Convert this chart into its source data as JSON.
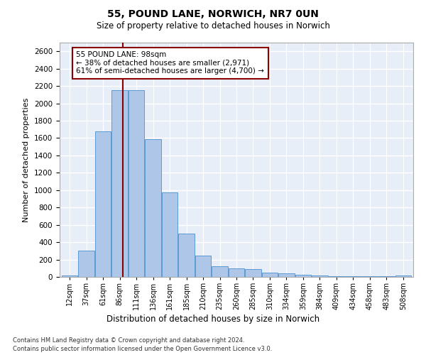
{
  "title1": "55, POUND LANE, NORWICH, NR7 0UN",
  "title2": "Size of property relative to detached houses in Norwich",
  "xlabel": "Distribution of detached houses by size in Norwich",
  "ylabel": "Number of detached properties",
  "annotation_line1": "55 POUND LANE: 98sqm",
  "annotation_line2": "← 38% of detached houses are smaller (2,971)",
  "annotation_line3": "61% of semi-detached houses are larger (4,700) →",
  "footnote1": "Contains HM Land Registry data © Crown copyright and database right 2024.",
  "footnote2": "Contains public sector information licensed under the Open Government Licence v3.0.",
  "bar_color": "#aec6e8",
  "bar_edge_color": "#5b9bd5",
  "vline_color": "#8b0000",
  "annotation_box_edge_color": "#8b0000",
  "background_color": "#e8eef8",
  "grid_color": "#ffffff",
  "categories": [
    "12sqm",
    "37sqm",
    "61sqm",
    "86sqm",
    "111sqm",
    "136sqm",
    "161sqm",
    "185sqm",
    "210sqm",
    "235sqm",
    "260sqm",
    "285sqm",
    "310sqm",
    "334sqm",
    "359sqm",
    "384sqm",
    "409sqm",
    "434sqm",
    "458sqm",
    "483sqm",
    "508sqm"
  ],
  "bin_starts": [
    0,
    1,
    2,
    3,
    4,
    5,
    6,
    7,
    8,
    9,
    10,
    11,
    12,
    13,
    14,
    15,
    16,
    17,
    18,
    19,
    20
  ],
  "values": [
    20,
    300,
    1680,
    2150,
    2150,
    1590,
    970,
    500,
    245,
    120,
    100,
    90,
    50,
    40,
    25,
    20,
    10,
    10,
    8,
    5,
    20
  ],
  "ylim": [
    0,
    2700
  ],
  "yticks": [
    0,
    200,
    400,
    600,
    800,
    1000,
    1200,
    1400,
    1600,
    1800,
    2000,
    2200,
    2400,
    2600
  ],
  "vline_bin": 3.2,
  "ann_title_fontsize": 7.5,
  "ann_body_fontsize": 7.5
}
